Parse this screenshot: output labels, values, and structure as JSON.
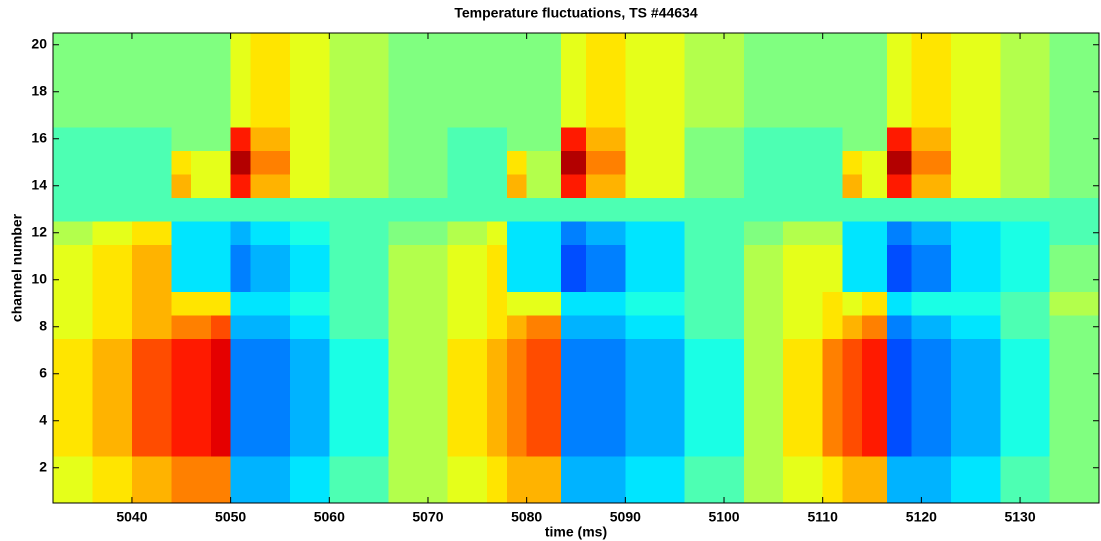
{
  "chart_data": {
    "type": "heatmap",
    "title": "Temperature fluctuations, TS #44634",
    "x_label": "time (ms)",
    "y_label": "channel number",
    "colormap": "jet",
    "zlim": [
      0,
      10
    ],
    "xbins": [
      5032,
      5036,
      5040,
      5044,
      5046,
      5048,
      5050,
      5052,
      5056,
      5060,
      5066,
      5072,
      5076,
      5078,
      5080,
      5082,
      5083.5,
      5086,
      5090,
      5096,
      5102,
      5106,
      5110,
      5112,
      5114,
      5116.5,
      5119,
      5123,
      5128,
      5133,
      5138
    ],
    "channels": [
      1,
      2,
      3,
      4,
      5,
      6,
      7,
      8,
      9,
      10,
      11,
      12,
      13,
      14,
      15,
      16,
      17,
      18,
      19,
      20
    ],
    "z": [
      [
        6,
        6.5,
        7,
        7.5,
        7.5,
        7.5,
        3,
        3,
        3.5,
        4.5,
        5.5,
        6,
        6.5,
        7,
        7,
        7,
        3,
        3,
        3.5,
        4.5,
        5.5,
        6,
        6.5,
        7,
        7,
        3,
        3,
        3.5,
        4.5,
        5
      ],
      [
        6,
        6.5,
        7,
        7.5,
        7.5,
        7.5,
        3,
        3,
        3.5,
        4.5,
        5.5,
        6,
        6.5,
        7,
        7,
        7,
        3,
        3,
        3.5,
        4.5,
        5.5,
        6,
        6.5,
        7,
        7,
        3,
        3,
        3.5,
        4.5,
        5
      ],
      [
        6.5,
        7,
        8,
        8.5,
        8.5,
        9,
        2.5,
        2.5,
        3,
        4,
        5.5,
        6.5,
        7,
        7.5,
        8,
        8,
        2.5,
        2.5,
        3,
        4,
        5.5,
        6.5,
        7.5,
        8,
        8.5,
        2,
        2.5,
        3,
        4,
        5
      ],
      [
        6.5,
        7,
        8,
        8.5,
        8.5,
        9,
        2.5,
        2.5,
        3,
        4,
        5.5,
        6.5,
        7,
        7.5,
        8,
        8,
        2.5,
        2.5,
        3,
        4,
        5.5,
        6.5,
        7.5,
        8,
        8.5,
        2,
        2.5,
        3,
        4,
        5
      ],
      [
        6.5,
        7,
        8,
        8.5,
        8.5,
        9,
        2.5,
        2.5,
        3,
        4,
        5.5,
        6.5,
        7,
        7.5,
        8,
        8,
        2.5,
        2.5,
        3,
        4,
        5.5,
        6.5,
        7.5,
        8,
        8.5,
        2,
        2.5,
        3,
        4,
        5
      ],
      [
        6.5,
        7,
        8,
        8.5,
        8.5,
        9,
        2.5,
        2.5,
        3,
        4,
        5.5,
        6.5,
        7,
        7.5,
        8,
        8,
        2.5,
        2.5,
        3,
        4,
        5.5,
        6.5,
        7.5,
        8,
        8.5,
        2,
        2.5,
        3,
        4,
        5
      ],
      [
        6.5,
        7,
        8,
        8.5,
        8.5,
        9,
        2.5,
        2.5,
        3,
        4,
        5.5,
        6.5,
        7,
        7.5,
        8,
        8,
        2.5,
        2.5,
        3,
        4,
        5.5,
        6.5,
        7.5,
        8,
        8.5,
        2,
        2.5,
        3,
        4,
        5
      ],
      [
        6,
        6.5,
        7,
        7.5,
        7.5,
        8,
        3,
        3,
        3.5,
        4.5,
        5.5,
        6,
        6.5,
        7,
        7.5,
        7.5,
        3,
        3,
        3.5,
        4.5,
        5.5,
        6,
        6.5,
        7,
        7.5,
        2.5,
        3,
        3.5,
        4.5,
        5
      ],
      [
        6,
        6.5,
        7,
        6.5,
        6.5,
        6.5,
        3.5,
        3.5,
        4,
        4.5,
        5.5,
        6,
        6.5,
        6,
        6,
        6,
        3.5,
        3.5,
        4,
        4.5,
        5.5,
        6,
        6.5,
        6,
        6.5,
        3.5,
        4,
        4,
        4.5,
        5.5
      ],
      [
        6,
        6.5,
        7,
        3.5,
        3.5,
        3.5,
        2.5,
        3,
        3.5,
        4.5,
        5.5,
        6,
        6.5,
        3.5,
        3.5,
        3.5,
        2,
        2.5,
        3.5,
        4.5,
        5.5,
        6,
        6,
        3.5,
        3.5,
        2,
        2.5,
        3.5,
        4,
        5
      ],
      [
        6,
        6.5,
        7,
        3.5,
        3.5,
        3.5,
        2.5,
        3,
        3.5,
        4.5,
        5.5,
        6,
        6.5,
        3.5,
        3.5,
        3.5,
        2,
        2.5,
        3.5,
        4.5,
        5.5,
        6,
        6,
        3.5,
        3.5,
        2,
        2.5,
        3.5,
        4,
        5
      ],
      [
        5.5,
        6,
        6.5,
        3.5,
        3.5,
        3.5,
        3,
        3.5,
        4,
        4.5,
        5,
        5.5,
        6,
        3.5,
        3.5,
        3.5,
        2.5,
        3,
        3.5,
        4.5,
        5,
        5.5,
        5.5,
        3.5,
        3.5,
        2.5,
        3,
        3.5,
        4,
        4.5
      ],
      [
        4.5,
        4.5,
        4.5,
        4.5,
        4.5,
        4.5,
        4.5,
        4.5,
        4.5,
        4.5,
        4.5,
        4.5,
        4.5,
        4.5,
        4.5,
        4.5,
        4.5,
        4.5,
        4.5,
        4.5,
        4.5,
        4.5,
        4.5,
        4.5,
        4.5,
        4.5,
        4.5,
        4.5,
        4.5,
        4.5
      ],
      [
        4.5,
        4.5,
        4.5,
        7,
        6,
        6,
        8.5,
        7,
        6,
        5.5,
        5,
        4.5,
        4.5,
        7,
        5.5,
        5.5,
        8.5,
        7,
        6,
        5,
        4.5,
        4.5,
        4.5,
        7,
        6,
        8.5,
        7,
        6,
        5.5,
        5
      ],
      [
        4.5,
        4.5,
        4.5,
        6.5,
        6,
        6,
        9.5,
        7.5,
        6,
        5.5,
        5,
        4.5,
        4.5,
        6.5,
        5.5,
        5.5,
        9.5,
        7.5,
        6,
        5,
        4.5,
        4.5,
        4.5,
        6.5,
        6,
        9.5,
        7.5,
        6,
        5.5,
        5
      ],
      [
        4.5,
        4.5,
        4.5,
        5,
        5,
        5,
        8.5,
        7,
        6,
        5.5,
        5,
        4.5,
        4.5,
        5,
        5,
        5,
        8.5,
        7,
        6,
        5,
        4.5,
        4.5,
        4.5,
        5,
        5,
        8.5,
        7,
        6,
        5.5,
        5
      ],
      [
        5,
        5,
        5,
        5,
        5,
        5,
        6,
        6.5,
        6,
        5.5,
        5,
        5,
        5,
        5,
        5,
        5,
        6,
        6.5,
        6,
        5.5,
        5,
        5,
        5,
        5,
        5,
        6,
        6.5,
        6,
        5.5,
        5
      ],
      [
        5,
        5,
        5,
        5,
        5,
        5,
        6,
        6.5,
        6,
        5.5,
        5,
        5,
        5,
        5,
        5,
        5,
        6,
        6.5,
        6,
        5.5,
        5,
        5,
        5,
        5,
        5,
        6,
        6.5,
        6,
        5.5,
        5
      ],
      [
        5,
        5,
        5,
        5,
        5,
        5,
        6,
        6.5,
        6,
        5.5,
        5,
        5,
        5,
        5,
        5,
        5,
        6,
        6.5,
        6,
        5.5,
        5,
        5,
        5,
        5,
        5,
        6,
        6.5,
        6,
        5.5,
        5
      ],
      [
        5,
        5,
        5,
        5,
        5,
        5,
        6,
        6.5,
        6,
        5.5,
        5,
        5,
        5,
        5,
        5,
        5,
        6,
        6.5,
        6,
        5.5,
        5,
        5,
        5,
        5,
        5,
        6,
        6.5,
        6,
        5.5,
        5
      ]
    ],
    "xlim": [
      5032,
      5138
    ],
    "xticks": [
      5040,
      5050,
      5060,
      5070,
      5080,
      5090,
      5100,
      5110,
      5120,
      5130
    ],
    "ylim": [
      0.5,
      20.5
    ],
    "yticks": [
      2,
      4,
      6,
      8,
      10,
      12,
      14,
      16,
      18,
      20
    ]
  }
}
